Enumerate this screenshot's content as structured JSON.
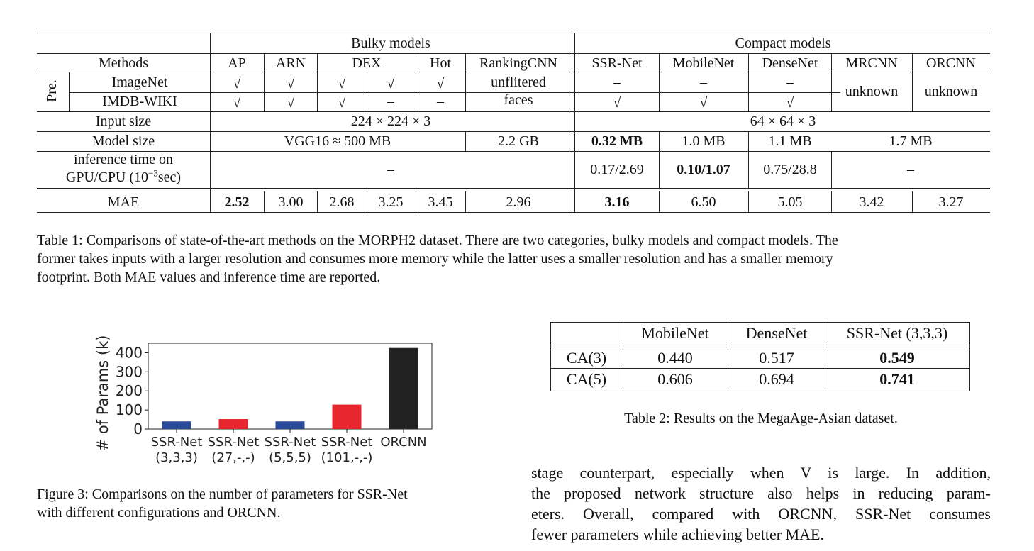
{
  "table1": {
    "group_headers": {
      "bulky": "Bulky models",
      "compact": "Compact models"
    },
    "methods_label": "Methods",
    "columns": [
      "AP",
      "ARN",
      "DEX",
      "Hot",
      "RankingCNN",
      "SSR-Net",
      "MobileNet",
      "DenseNet",
      "MRCNN",
      "ORCNN"
    ],
    "pre_label": "Pre.",
    "imagenet_label": "ImageNet",
    "imdb_label": "IMDB-WIKI",
    "check": "√",
    "dash": "–",
    "unknown": "unknown",
    "unflitered_faces": [
      "unflitered",
      "faces"
    ],
    "input_size_label": "Input size",
    "input_bulky": "224 × 224 × 3",
    "input_compact": "64 × 64 × 3",
    "model_size_label": "Model size",
    "model_size": {
      "vgg": "VGG16 ≈ 500 MB",
      "rankingcnn": "2.2 GB",
      "ssrnet": "0.32 MB",
      "mobilenet": "1.0 MB",
      "densenet": "1.1 MB",
      "orcnn": "1.7 MB"
    },
    "inference_label": [
      "inference time on",
      "GPU/CPU (10",
      "−3",
      "sec)"
    ],
    "inference": {
      "ssrnet": "0.17/2.69",
      "mobilenet": "0.10/1.07",
      "densenet": "0.75/28.8"
    },
    "mae_label": "MAE",
    "mae": [
      "2.52",
      "3.00",
      "2.68",
      "3.25",
      "3.45",
      "2.96",
      "3.16",
      "6.50",
      "5.05",
      "3.42",
      "3.27"
    ],
    "caption": [
      "Table 1: Comparisons of state-of-the-art methods on the MORPH2 dataset. There are two categories, bulky models and compact models. The",
      "former takes inputs with a larger resolution and consumes more memory while the latter uses a smaller resolution and has a smaller memory",
      "footprint. Both MAE values and inference time are reported."
    ]
  },
  "chart_data": {
    "type": "bar",
    "categories": [
      "SSR-Net\n(3,3,3)",
      "SSR-Net\n(27,-,-)",
      "SSR-Net\n(5,5,5)",
      "SSR-Net\n(101,-,-)",
      "ORCNN"
    ],
    "category_lines": [
      [
        "SSR-Net",
        "(3,3,3)"
      ],
      [
        "SSR-Net",
        "(27,-,-)"
      ],
      [
        "SSR-Net",
        "(5,5,5)"
      ],
      [
        "SSR-Net",
        "(101,-,-)"
      ],
      [
        "ORCNN",
        ""
      ]
    ],
    "values": [
      40,
      52,
      40,
      128,
      425
    ],
    "colors": [
      "#2a4b9b",
      "#e8262d",
      "#2a4b9b",
      "#e8262d",
      "#222222"
    ],
    "ylabel": "# of Params (k)",
    "yticks": [
      0,
      100,
      200,
      300,
      400
    ],
    "ylim": [
      0,
      450
    ],
    "grid": false
  },
  "figure3_caption": [
    "Figure 3: Comparisons on the number of parameters for SSR-Net",
    "with different configurations and ORCNN."
  ],
  "table2": {
    "headers": [
      "",
      "MobileNet",
      "DenseNet",
      "SSR-Net (3,3,3)"
    ],
    "rows": [
      [
        "CA(3)",
        "0.440",
        "0.517",
        "0.549"
      ],
      [
        "CA(5)",
        "0.606",
        "0.694",
        "0.741"
      ]
    ],
    "caption": "Table 2: Results on the MegaAge-Asian dataset."
  },
  "body_text": [
    "stage counterpart, especially when V is large.  In addition,",
    "the proposed network structure also helps in reducing param-",
    "eters.  Overall, compared with ORCNN, SSR-Net consumes",
    "fewer parameters while achieving better MAE."
  ]
}
